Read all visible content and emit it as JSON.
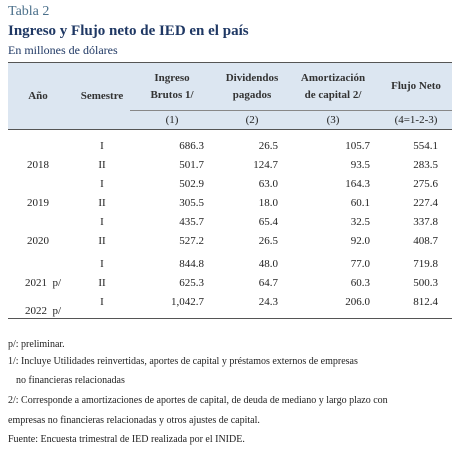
{
  "header": {
    "label": "Tabla 2",
    "title": "Ingreso y Flujo neto de IED en el país",
    "subtitle": "En millones de dólares"
  },
  "table": {
    "columns": [
      {
        "lines": [
          "Año"
        ]
      },
      {
        "lines": [
          "Semestre"
        ]
      },
      {
        "lines": [
          "Ingreso",
          "Brutos 1/"
        ],
        "code": "(1)"
      },
      {
        "lines": [
          "Dividendos",
          "pagados"
        ],
        "code": "(2)"
      },
      {
        "lines": [
          "Amortización",
          "de capital 2/"
        ],
        "code": "(3)"
      },
      {
        "lines": [
          "Flujo Neto"
        ],
        "code": "(4=1-2-3)"
      }
    ],
    "groups": [
      {
        "year": "2018",
        "rows": [
          [
            "I",
            "686.3",
            "26.5",
            "105.7",
            "554.1"
          ],
          [
            "II",
            "501.7",
            "124.7",
            "93.5",
            "283.5"
          ]
        ]
      },
      {
        "year": "2019",
        "rows": [
          [
            "I",
            "502.9",
            "63.0",
            "164.3",
            "275.6"
          ],
          [
            "II",
            "305.5",
            "18.0",
            "60.1",
            "227.4"
          ]
        ]
      },
      {
        "year": "2020",
        "rows": [
          [
            "I",
            "435.7",
            "65.4",
            "32.5",
            "337.8"
          ],
          [
            "II",
            "527.2",
            "26.5",
            "92.0",
            "408.7"
          ]
        ]
      },
      {
        "year": "2021  p/",
        "rows": [
          [
            "I",
            "844.8",
            "48.0",
            "77.0",
            "719.8"
          ],
          [
            "II",
            "625.3",
            "64.7",
            "60.3",
            "500.3"
          ]
        ]
      },
      {
        "year": "2022  p/",
        "rows": [
          [
            "I",
            "1,042.7",
            "24.3",
            "206.0",
            "812.4"
          ]
        ]
      }
    ]
  },
  "notes": [
    "p/: preliminar.",
    "1/: Incluye Utilidades reinvertidas, aportes de capital y préstamos externos de empresas",
    "no financieras relacionadas",
    "2/: Corresponde a amortizaciones de aportes de capital, de deuda de mediano y largo plazo con",
    "empresas no financieras relacionadas y otros ajustes de capital.",
    "Fuente: Encuesta trimestral de IED realizada por el INIDE."
  ]
}
